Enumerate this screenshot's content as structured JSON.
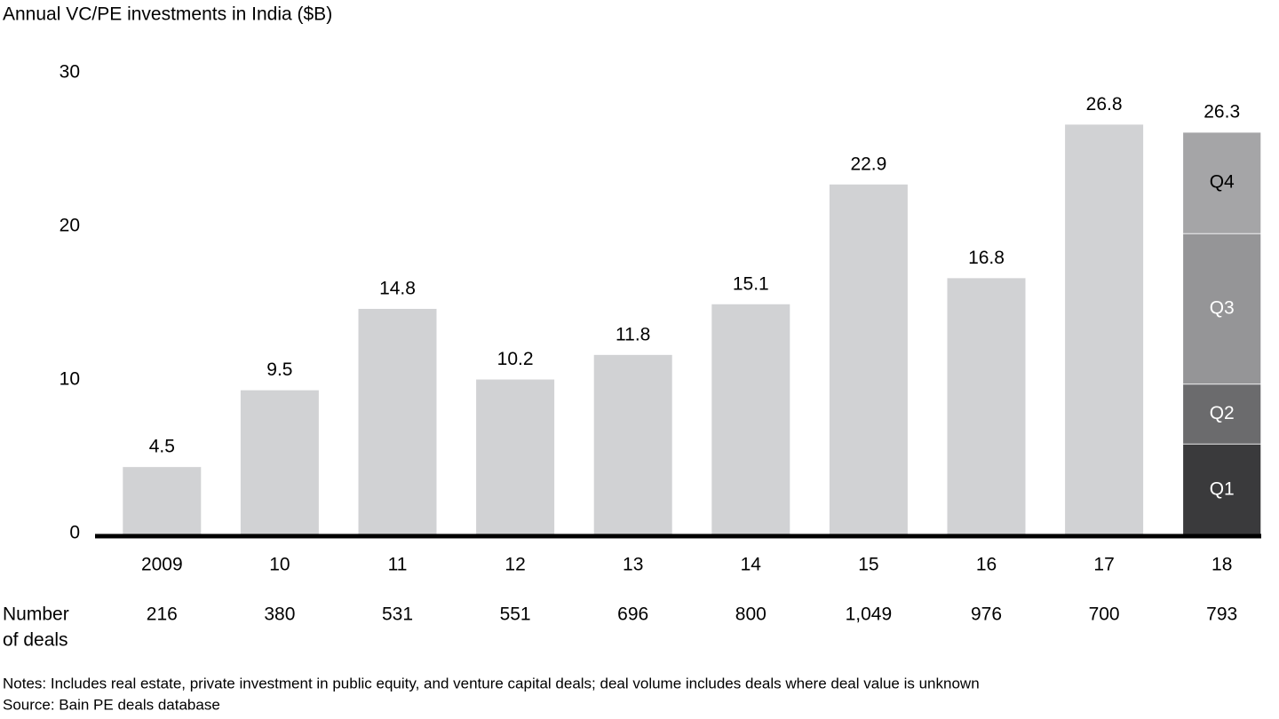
{
  "chart_data": {
    "type": "bar",
    "title": "Annual VC/PE investments in India ($B)",
    "categories": [
      "2009",
      "10",
      "11",
      "12",
      "13",
      "14",
      "15",
      "16",
      "17",
      "18"
    ],
    "values": [
      4.5,
      9.5,
      14.8,
      10.2,
      11.8,
      15.1,
      22.9,
      16.8,
      26.8,
      26.3
    ],
    "color": "#d1d2d4",
    "series": [
      {
        "name": "Q1",
        "color": "#3a3a3c",
        "label_color": "#ffffff",
        "values": [
          null,
          null,
          null,
          null,
          null,
          null,
          null,
          null,
          null,
          6.0
        ]
      },
      {
        "name": "Q2",
        "color": "#6b6b6d",
        "label_color": "#ffffff",
        "values": [
          null,
          null,
          null,
          null,
          null,
          null,
          null,
          null,
          null,
          3.9
        ]
      },
      {
        "name": "Q3",
        "color": "#959597",
        "label_color": "#ffffff",
        "values": [
          null,
          null,
          null,
          null,
          null,
          null,
          null,
          null,
          null,
          9.8
        ]
      },
      {
        "name": "Q4",
        "color": "#a5a5a7",
        "label_color": "#000000",
        "values": [
          null,
          null,
          null,
          null,
          null,
          null,
          null,
          null,
          null,
          6.6
        ]
      }
    ],
    "ylim": [
      0,
      30
    ],
    "yticks": [
      0,
      10,
      20,
      30
    ],
    "grid": false,
    "deals_title": [
      "Number",
      "of deals"
    ],
    "deals": [
      216,
      380,
      531,
      551,
      696,
      800,
      {
        "value": 1049,
        "label": "1,049"
      },
      976,
      700,
      793
    ],
    "notes": "Notes: Includes real estate, private investment in public equity, and venture capital deals; deal volume includes deals where deal value is unknown",
    "source": "Source: Bain PE deals database"
  }
}
